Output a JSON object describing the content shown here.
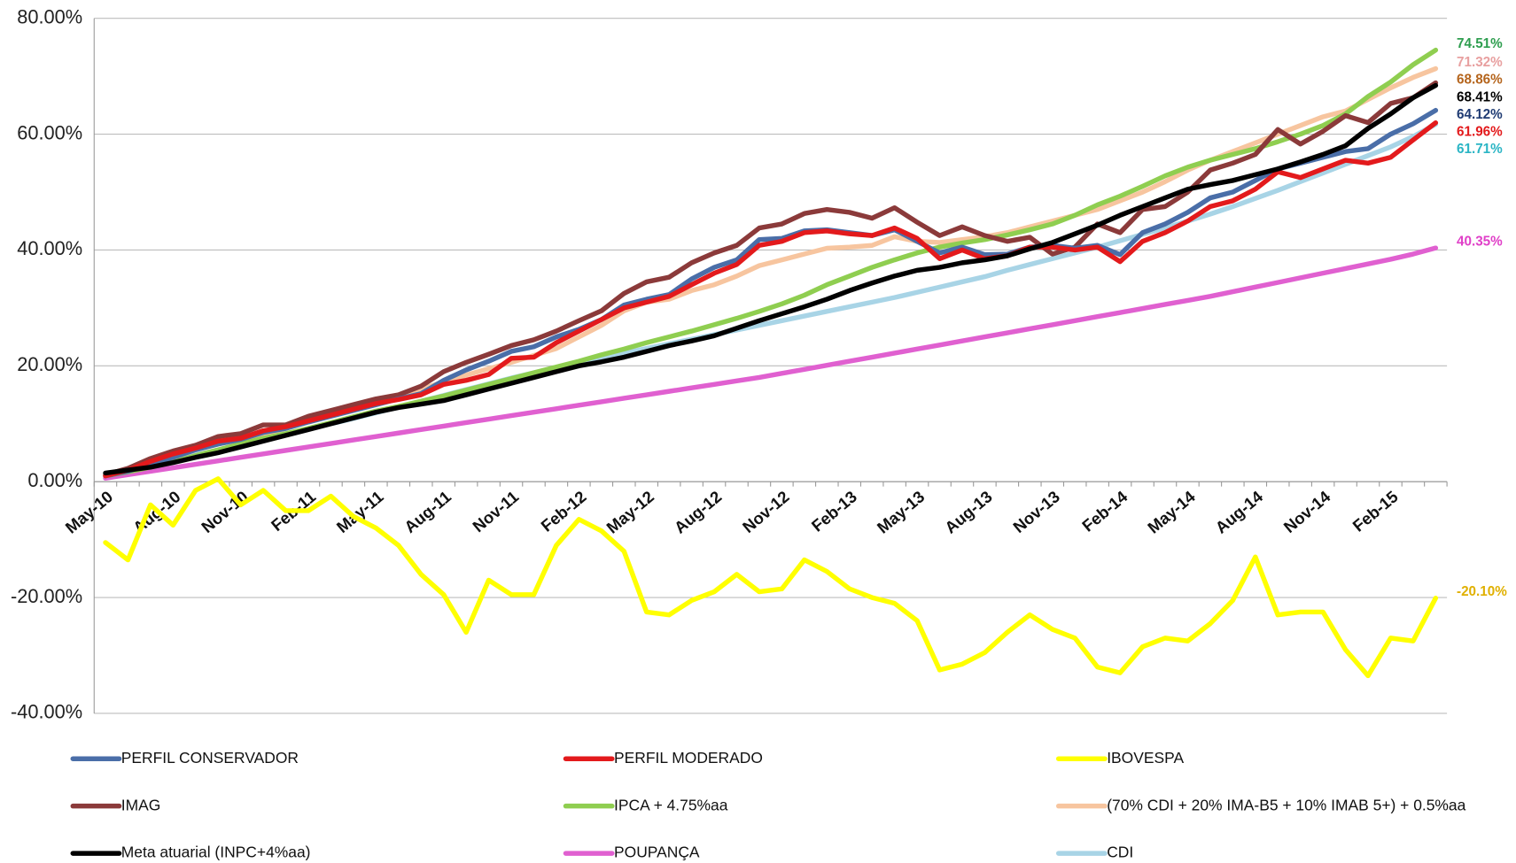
{
  "chart_data": {
    "type": "line",
    "categories": [
      "May-10",
      null,
      null,
      "Aug-10",
      null,
      null,
      "Nov-10",
      null,
      null,
      "Feb-11",
      null,
      null,
      "May-11",
      null,
      null,
      "Aug-11",
      null,
      null,
      "Nov-11",
      null,
      null,
      "Feb-12",
      null,
      null,
      "May-12",
      null,
      null,
      "Aug-12",
      null,
      null,
      "Nov-12",
      null,
      null,
      "Feb-13",
      null,
      null,
      "May-13",
      null,
      null,
      "Aug-13",
      null,
      null,
      "Nov-13",
      null,
      null,
      "Feb-14",
      null,
      null,
      "May-14",
      null,
      null,
      "Aug-14",
      null,
      null,
      "Nov-14",
      null,
      null,
      "Feb-15",
      null,
      null
    ],
    "ylim": [
      -40,
      80
    ],
    "yticks": [
      {
        "value": -40,
        "label": "-40.00%"
      },
      {
        "value": -20,
        "label": "-20.00%"
      },
      {
        "value": 0,
        "label": "0.00%"
      },
      {
        "value": 20,
        "label": "20.00%"
      },
      {
        "value": 40,
        "label": "40.00%"
      },
      {
        "value": 60,
        "label": "60.00%"
      },
      {
        "value": 80,
        "label": "80.00%"
      }
    ],
    "grid": true,
    "series": [
      {
        "name": "PERFIL CONSERVADOR",
        "color": "#4a6ea8",
        "label_color": "#1f3b73",
        "end_label": "64.12%",
        "values": [
          1.0,
          1.8,
          3.0,
          4.2,
          5.5,
          6.5,
          7.3,
          8.5,
          9.2,
          10.3,
          11.3,
          12.3,
          13.3,
          14.3,
          15.2,
          17.5,
          19.3,
          20.8,
          22.5,
          23.3,
          25.0,
          26.3,
          28.0,
          30.5,
          31.5,
          32.3,
          35.0,
          37.0,
          38.3,
          41.8,
          42.0,
          43.3,
          43.5,
          43.0,
          42.5,
          43.5,
          41.5,
          39.5,
          40.5,
          39.2,
          39.3,
          40.5,
          40.8,
          40.3,
          40.8,
          39.2,
          43.0,
          44.5,
          46.5,
          49.0,
          50.0,
          52.0,
          54.0,
          55.0,
          56.0,
          57.0,
          57.5,
          60.0,
          61.8,
          64.12
        ]
      },
      {
        "name": "PERFIL MODERADO",
        "color": "#e31a1c",
        "label_color": "#e31a1c",
        "end_label": "61.96%",
        "values": [
          1.0,
          2.0,
          3.5,
          4.8,
          5.8,
          7.0,
          7.5,
          8.8,
          9.5,
          10.5,
          11.5,
          12.5,
          13.5,
          14.2,
          15.0,
          16.8,
          17.5,
          18.5,
          21.3,
          21.5,
          24.0,
          26.0,
          28.0,
          30.0,
          31.0,
          32.0,
          34.0,
          36.0,
          37.5,
          40.8,
          41.5,
          43.0,
          43.3,
          42.8,
          42.5,
          43.8,
          42.0,
          38.5,
          40.0,
          38.5,
          39.0,
          40.5,
          40.5,
          40.0,
          40.5,
          38.0,
          41.5,
          43.0,
          45.0,
          47.5,
          48.5,
          50.5,
          53.5,
          52.5,
          54.0,
          55.5,
          55.0,
          56.0,
          59.0,
          61.96
        ]
      },
      {
        "name": "IBOVESPA",
        "color": "#ffff00",
        "label_color": "#e0b000",
        "end_label": "-20.10%",
        "values": [
          -10.5,
          -13.5,
          -4.0,
          -7.5,
          -1.5,
          0.5,
          -4.0,
          -1.5,
          -5.0,
          -5.0,
          -2.5,
          -6.0,
          -8.0,
          -11.0,
          -16.0,
          -19.5,
          -26.0,
          -17.0,
          -19.5,
          -19.5,
          -11.0,
          -6.5,
          -8.5,
          -12.0,
          -22.5,
          -23.0,
          -20.5,
          -19.0,
          -16.0,
          -19.0,
          -18.5,
          -13.5,
          -15.5,
          -18.5,
          -20.0,
          -21.0,
          -24.0,
          -32.5,
          -31.5,
          -29.5,
          -26.0,
          -23.0,
          -25.5,
          -27.0,
          -32.0,
          -33.0,
          -28.5,
          -27.0,
          -27.5,
          -24.5,
          -20.5,
          -13.0,
          -23.0,
          -22.5,
          -22.5,
          -29.0,
          -33.5,
          -27.0,
          -27.5,
          -20.1
        ]
      },
      {
        "name": "IMAG",
        "color": "#8b3a3a",
        "label_color": "#b5651d",
        "end_label": "68.86%",
        "values": [
          1.2,
          2.3,
          4.0,
          5.3,
          6.3,
          7.8,
          8.3,
          9.8,
          9.8,
          11.3,
          12.3,
          13.3,
          14.3,
          15.0,
          16.5,
          19.0,
          20.6,
          22.0,
          23.5,
          24.5,
          26.0,
          27.8,
          29.5,
          32.5,
          34.5,
          35.3,
          37.8,
          39.5,
          40.8,
          43.8,
          44.5,
          46.3,
          47.0,
          46.5,
          45.5,
          47.3,
          44.8,
          42.5,
          44.0,
          42.5,
          41.5,
          42.2,
          39.3,
          40.5,
          44.5,
          43.0,
          47.0,
          47.5,
          50.0,
          53.8,
          55.0,
          56.5,
          60.8,
          58.3,
          60.5,
          63.2,
          62.0,
          65.3,
          66.3,
          68.86
        ]
      },
      {
        "name": "IPCA + 4.75%aa",
        "color": "#8fce50",
        "label_color": "#2e9e4f",
        "end_label": "74.51%",
        "values": [
          1.0,
          1.7,
          2.5,
          3.4,
          4.5,
          5.5,
          6.5,
          7.5,
          8.3,
          9.2,
          10.2,
          11.2,
          12.2,
          13.0,
          13.9,
          14.8,
          15.8,
          16.8,
          17.8,
          18.8,
          19.8,
          20.8,
          21.9,
          22.9,
          24.0,
          25.0,
          26.0,
          27.1,
          28.2,
          29.4,
          30.7,
          32.2,
          34.0,
          35.5,
          37.0,
          38.3,
          39.5,
          40.5,
          41.2,
          41.8,
          42.6,
          43.5,
          44.5,
          46.0,
          47.8,
          49.3,
          51.0,
          52.8,
          54.3,
          55.5,
          56.5,
          57.5,
          58.7,
          60.0,
          61.5,
          63.5,
          66.5,
          69.0,
          72.0,
          74.51
        ]
      },
      {
        "name": "(70% CDI + 20% IMA-B5 + 10% IMAB 5+) + 0.5%aa",
        "color": "#f7c59f",
        "label_color": "#e8a0a0",
        "end_label": "71.32%",
        "values": [
          1.0,
          1.8,
          3.0,
          4.2,
          5.5,
          6.5,
          7.3,
          8.1,
          9.2,
          10.3,
          11.5,
          12.7,
          13.8,
          14.8,
          16.0,
          17.2,
          18.4,
          19.5,
          20.6,
          21.8,
          23.0,
          25.0,
          27.0,
          29.5,
          31.0,
          31.5,
          33.0,
          34.0,
          35.5,
          37.3,
          38.3,
          39.3,
          40.3,
          40.5,
          40.8,
          42.3,
          41.5,
          41.3,
          41.8,
          42.3,
          43.0,
          44.0,
          45.0,
          46.0,
          47.0,
          48.5,
          50.0,
          51.8,
          53.8,
          55.5,
          57.0,
          58.5,
          60.0,
          61.5,
          63.0,
          64.0,
          66.0,
          68.0,
          69.8,
          71.32
        ]
      },
      {
        "name": "Meta atuarial (INPC+4%aa)",
        "color": "#000000",
        "label_color": "#000000",
        "end_label": "68.41%",
        "values": [
          1.5,
          2.0,
          2.5,
          3.3,
          4.2,
          5.0,
          6.0,
          7.0,
          8.0,
          9.0,
          10.0,
          11.0,
          12.0,
          12.8,
          13.4,
          14.0,
          15.0,
          16.0,
          17.0,
          18.0,
          19.0,
          20.0,
          20.7,
          21.5,
          22.5,
          23.5,
          24.3,
          25.2,
          26.5,
          27.8,
          29.0,
          30.2,
          31.5,
          33.0,
          34.3,
          35.5,
          36.5,
          37.0,
          37.8,
          38.3,
          39.0,
          40.2,
          41.3,
          42.8,
          44.3,
          46.0,
          47.5,
          49.0,
          50.5,
          51.3,
          52.0,
          53.0,
          54.0,
          55.2,
          56.5,
          58.0,
          61.0,
          63.5,
          66.3,
          68.41
        ]
      },
      {
        "name": "POUPANÇA",
        "color": "#e060d0",
        "label_color": "#e040c8",
        "end_label": "40.35%",
        "values": [
          0.6,
          1.2,
          1.8,
          2.4,
          3.0,
          3.6,
          4.2,
          4.8,
          5.4,
          6.0,
          6.6,
          7.2,
          7.8,
          8.4,
          9.0,
          9.6,
          10.2,
          10.8,
          11.4,
          12.0,
          12.6,
          13.2,
          13.8,
          14.4,
          15.0,
          15.6,
          16.2,
          16.8,
          17.4,
          18.0,
          18.7,
          19.4,
          20.1,
          20.8,
          21.5,
          22.2,
          22.9,
          23.6,
          24.3,
          25.0,
          25.7,
          26.4,
          27.1,
          27.8,
          28.5,
          29.2,
          29.9,
          30.6,
          31.3,
          32.0,
          32.8,
          33.6,
          34.4,
          35.2,
          36.0,
          36.8,
          37.6,
          38.4,
          39.3,
          40.35
        ]
      },
      {
        "name": "CDI",
        "color": "#a8d4e6",
        "label_color": "#2bb5c5",
        "end_label": "61.71%",
        "values": [
          1.0,
          1.9,
          2.8,
          3.7,
          4.6,
          5.5,
          6.4,
          7.3,
          8.2,
          9.1,
          10.0,
          10.9,
          11.9,
          12.9,
          13.9,
          14.9,
          15.9,
          16.9,
          17.9,
          18.8,
          19.7,
          20.6,
          21.4,
          22.2,
          23.0,
          23.8,
          24.6,
          25.4,
          26.2,
          27.0,
          27.8,
          28.6,
          29.4,
          30.2,
          31.0,
          31.8,
          32.7,
          33.6,
          34.5,
          35.4,
          36.5,
          37.5,
          38.5,
          39.5,
          40.5,
          41.6,
          42.7,
          43.8,
          45.0,
          46.2,
          47.5,
          48.9,
          50.3,
          51.8,
          53.3,
          54.8,
          56.3,
          57.8,
          59.6,
          61.71
        ]
      }
    ]
  }
}
